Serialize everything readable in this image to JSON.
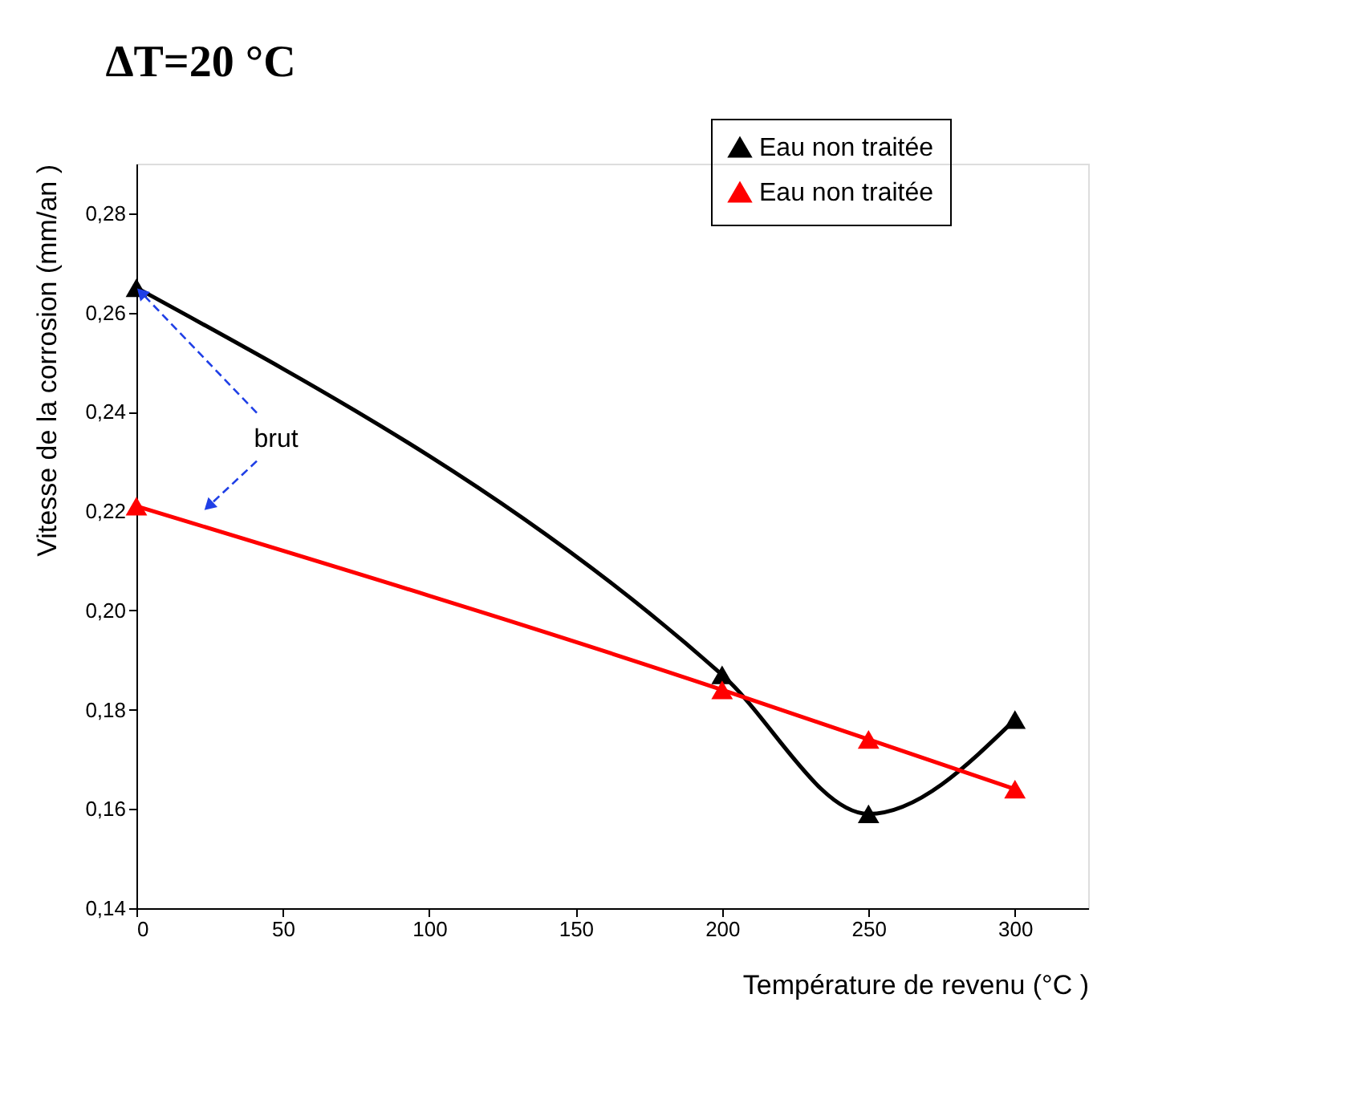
{
  "chart_data": {
    "type": "line",
    "title": "ΔT=20 °C",
    "xlabel": "Température de revenu    (°C )",
    "ylabel": "Vitesse de la corrosion    (mm/an )",
    "x": [
      0,
      200,
      250,
      300
    ],
    "series": [
      {
        "name": "Eau non traitée",
        "color": "#000000",
        "values": [
          0.265,
          0.187,
          0.159,
          0.178
        ]
      },
      {
        "name": "Eau non traitée",
        "color": "#ff0000",
        "values": [
          0.221,
          0.184,
          0.174,
          0.164
        ]
      }
    ],
    "xlim": [
      0,
      325
    ],
    "xticks": [
      0,
      50,
      100,
      150,
      200,
      250,
      300
    ],
    "ylim": [
      0.14,
      0.29
    ],
    "yticks": [
      {
        "value": 0.14,
        "label": "0,14"
      },
      {
        "value": 0.16,
        "label": "0,16"
      },
      {
        "value": 0.18,
        "label": "0,18"
      },
      {
        "value": 0.2,
        "label": "0,20"
      },
      {
        "value": 0.22,
        "label": "0,22"
      },
      {
        "value": 0.24,
        "label": "0,24"
      },
      {
        "value": 0.26,
        "label": "0,26"
      },
      {
        "value": 0.28,
        "label": "0,28"
      }
    ],
    "annotations": [
      {
        "text": "brut",
        "x": 0,
        "y": 0.265
      }
    ],
    "grid": false,
    "legend": "top right",
    "marker": "triangle",
    "line_style": "solid"
  }
}
